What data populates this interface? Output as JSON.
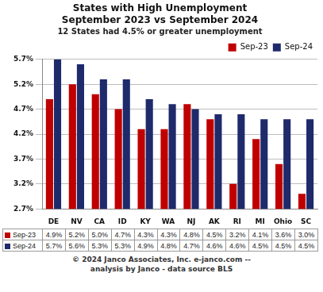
{
  "chart_data": {
    "type": "bar",
    "title": [
      "States with High Unemployment",
      "September 2023 vs September 2024"
    ],
    "subtitle": "12 States had 4.5% or greater unemployment",
    "categories": [
      "DE",
      "NV",
      "CA",
      "ID",
      "KY",
      "WA",
      "NJ",
      "AK",
      "RI",
      "MI",
      "Ohio",
      "SC"
    ],
    "series": [
      {
        "name": "Sep-23",
        "color": "#c00000",
        "values": [
          4.9,
          5.2,
          5.0,
          4.7,
          4.3,
          4.3,
          4.8,
          4.5,
          3.2,
          4.1,
          3.6,
          3.0
        ],
        "value_labels": [
          "4.9%",
          "5.2%",
          "5.0%",
          "4.7%",
          "4.3%",
          "4.3%",
          "4.8%",
          "4.5%",
          "3.2%",
          "4.1%",
          "3.6%",
          "3.0%"
        ]
      },
      {
        "name": "Sep-24",
        "color": "#1f2a6b",
        "values": [
          5.7,
          5.6,
          5.3,
          5.3,
          4.9,
          4.8,
          4.7,
          4.6,
          4.6,
          4.5,
          4.5,
          4.5
        ],
        "value_labels": [
          "5.7%",
          "5.6%",
          "5.3%",
          "5.3%",
          "4.9%",
          "4.8%",
          "4.7%",
          "4.6%",
          "4.6%",
          "4.5%",
          "4.5%",
          "4.5%"
        ]
      }
    ],
    "ylim": [
      2.7,
      5.7
    ],
    "yticks": [
      {
        "value": 2.7,
        "label": "2.7%"
      },
      {
        "value": 3.2,
        "label": "3.2%"
      },
      {
        "value": 3.7,
        "label": "3.7%"
      },
      {
        "value": 4.2,
        "label": "4.2%"
      },
      {
        "value": 4.7,
        "label": "4.7%"
      },
      {
        "value": 5.2,
        "label": "5.2%"
      },
      {
        "value": 5.7,
        "label": "5.7%"
      }
    ],
    "grid": true,
    "legend": "top-right",
    "annotations": [
      "© 2024 Janco Associates, Inc. e-janco.com --",
      "analysis by Janco - data source BLS"
    ]
  }
}
